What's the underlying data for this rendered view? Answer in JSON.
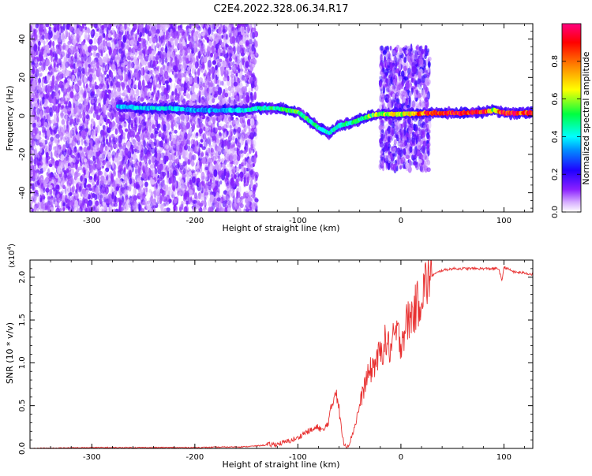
{
  "figure": {
    "title": "C2E4.2022.328.06.34.R17"
  },
  "chart_data": [
    {
      "type": "heatmap",
      "xlabel": "Height of straight line (km)",
      "ylabel": "Frequency (Hz)",
      "xlim": [
        -360,
        128
      ],
      "ylim": [
        -50,
        48
      ],
      "xticks": [
        -300,
        -200,
        -100,
        0,
        100
      ],
      "yticks": [
        -40,
        -20,
        0,
        20,
        40
      ],
      "grid": false,
      "colorbar": {
        "label": "Normalized spectral amplitude",
        "range": [
          0.0,
          1.0
        ],
        "ticks": [
          "0.0",
          "0.2",
          "0.4",
          "0.6",
          "0.8"
        ],
        "colors": [
          "#ffffff",
          "#c080ff",
          "#7a00ff",
          "#0000ff",
          "#00ffff",
          "#00ff00",
          "#ffff00",
          "#ff8000",
          "#ff0000",
          "#ff0080"
        ]
      },
      "regions": [
        {
          "x_start": -360,
          "x_end": -140,
          "f_min": -50,
          "f_max": 48,
          "amplitude": 0.15
        },
        {
          "x_start": -20,
          "x_end": 28,
          "f_min": -28,
          "f_max": 36,
          "amplitude": 0.2
        }
      ],
      "ridge": {
        "x": [
          -275,
          -250,
          -225,
          -200,
          -175,
          -150,
          -140,
          -120,
          -100,
          -90,
          -80,
          -70,
          -60,
          -50,
          -40,
          -30,
          -20,
          0,
          30,
          60,
          80,
          90,
          100,
          128
        ],
        "frequency": [
          5,
          4,
          4,
          3,
          3,
          3,
          4,
          4,
          2,
          -2,
          -6,
          -9,
          -5,
          -4,
          -2,
          0,
          1,
          1,
          1.5,
          1.5,
          2,
          3,
          1.5,
          1.5
        ],
        "amplitude": [
          0.35,
          0.4,
          0.4,
          0.35,
          0.35,
          0.4,
          0.45,
          0.5,
          0.55,
          0.5,
          0.45,
          0.4,
          0.45,
          0.5,
          0.5,
          0.55,
          0.6,
          0.65,
          0.9,
          0.95,
          0.9,
          0.6,
          0.9,
          0.9
        ]
      }
    },
    {
      "type": "line",
      "xlabel": "Height of straight line (km)",
      "ylabel": "SNR (10 * v/v)",
      "multiplier": "(x10",
      "multiplier_exp": "4",
      "multiplier_close": ")",
      "xlim": [
        -360,
        128
      ],
      "ylim": [
        0.0,
        2.2
      ],
      "xticks": [
        -300,
        -200,
        -100,
        0,
        100
      ],
      "yticks": [
        "0.0",
        "0.5",
        "1.0",
        "1.5",
        "2.0"
      ],
      "grid": false,
      "series": [
        {
          "color": "#e83030",
          "x": [
            -360,
            -300,
            -250,
            -200,
            -150,
            -130,
            -120,
            -110,
            -100,
            -95,
            -90,
            -85,
            -80,
            -75,
            -70,
            -66,
            -63,
            -60,
            -57,
            -55,
            -52,
            -50,
            -45,
            -40,
            -35,
            -30,
            -25,
            -20,
            -15,
            -10,
            -5,
            0,
            5,
            10,
            15,
            20,
            25,
            30,
            40,
            50,
            60,
            80,
            95,
            98,
            100,
            110,
            120,
            128
          ],
          "y": [
            0.0,
            0.01,
            0.01,
            0.01,
            0.02,
            0.04,
            0.05,
            0.08,
            0.12,
            0.17,
            0.2,
            0.22,
            0.25,
            0.2,
            0.33,
            0.55,
            0.72,
            0.45,
            0.15,
            0.05,
            0.03,
            0.06,
            0.25,
            0.5,
            0.75,
            0.9,
            1.0,
            1.1,
            1.25,
            1.15,
            1.35,
            1.25,
            1.45,
            1.55,
            1.65,
            1.8,
            1.95,
            2.02,
            2.08,
            2.1,
            2.1,
            2.1,
            2.1,
            1.95,
            2.12,
            2.06,
            2.05,
            2.03
          ]
        }
      ]
    }
  ]
}
